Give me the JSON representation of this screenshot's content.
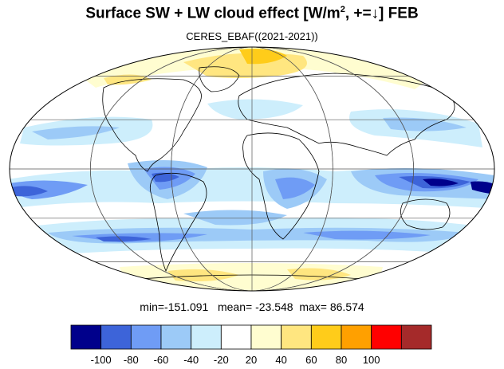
{
  "header": {
    "title_main": "Surface SW + LW cloud effect [W/m",
    "title_sup": "2",
    "title_rest": ", +=↓]  FEB",
    "subtitle": "CERES_EBAF((2021-2021))"
  },
  "stats": {
    "min_label": "min=",
    "min": "-151.091",
    "mean_label": "mean=",
    "mean": "-23.548",
    "max_label": "max=",
    "max": "86.574"
  },
  "colorbar": {
    "colors": [
      "#00008b",
      "#3d64d9",
      "#6f9cf5",
      "#9ccaf7",
      "#cdeefc",
      "#ffffff",
      "#fffdd0",
      "#ffe680",
      "#ffcc1a",
      "#ffa000",
      "#ff0000",
      "#a52a2a"
    ],
    "ticks": [
      "-100",
      "-80",
      "-60",
      "-40",
      "-20",
      "20",
      "40",
      "60",
      "80",
      "100"
    ]
  },
  "map": {
    "projection": "Mollweide",
    "meridians_deg": [
      -180,
      -120,
      -60,
      0,
      60,
      120,
      180
    ],
    "parallels_deg": [
      -60,
      -30,
      0,
      30,
      60
    ]
  }
}
